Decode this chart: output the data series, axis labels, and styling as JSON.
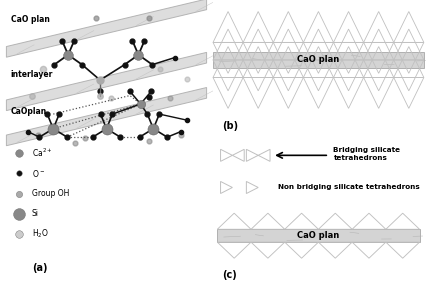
{
  "panel_a_label": "(a)",
  "panel_b_label": "(b)",
  "panel_c_label": "(c)",
  "CaO_plan_top_label": "CaO plan",
  "interlayer_label": "interlayer",
  "CaOplan_label": "CaOplan",
  "legend_ca": "Ca²⁺",
  "legend_o": "O⁻",
  "legend_oh": "Group OH",
  "legend_si": "Si",
  "legend_h2o": "H₂O",
  "bridging_label": "Bridging silicate\ntetrahedrons",
  "non_bridging_label": "Non bridging silicate tetrahedrons",
  "CaO_plan_b_label": "CaO plan",
  "CaO_plan_c_label": "CaO plan",
  "ca_color": "#888888",
  "o_color": "#111111",
  "oh_color": "#aaaaaa",
  "si_color": "#888888",
  "h2o_color": "#cccccc",
  "plane_color": "#e0e0e0",
  "tetra_color": "#bbbbbb",
  "marble_light": "#d8d8d8",
  "marble_dark": "#a0a0a0"
}
